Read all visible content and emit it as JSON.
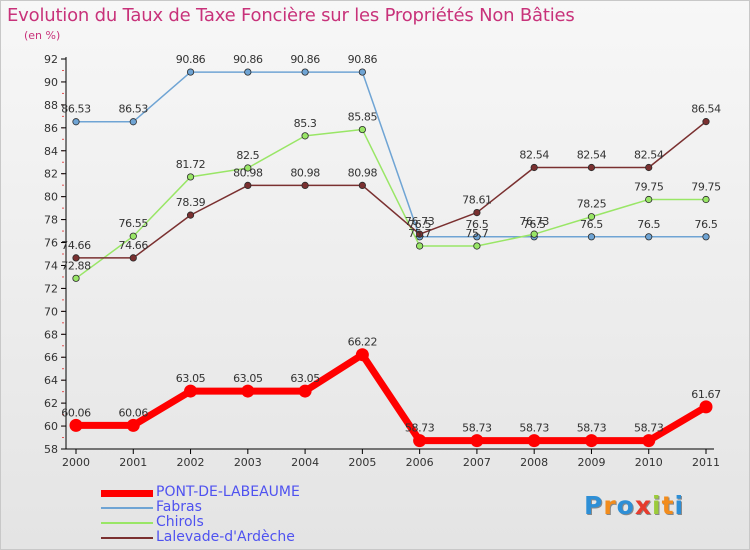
{
  "chart_data": {
    "type": "line",
    "title": "Evolution du Taux de Taxe Foncière sur les Propriétés Non Bâties",
    "ylabel": "(en %)",
    "xlabel": "",
    "categories": [
      "2000",
      "2001",
      "2002",
      "2003",
      "2004",
      "2005",
      "2006",
      "2007",
      "2008",
      "2009",
      "2010",
      "2011"
    ],
    "ylim": [
      58,
      92
    ],
    "yticks": [
      58,
      60,
      62,
      64,
      66,
      68,
      70,
      72,
      74,
      76,
      78,
      80,
      82,
      84,
      86,
      88,
      90,
      92
    ],
    "grid": false,
    "legend_position": "bottom-left",
    "series": [
      {
        "name": "PONT-DE-LABEAUME",
        "color": "#ff0000",
        "values": [
          60.06,
          60.06,
          63.05,
          63.05,
          63.05,
          66.22,
          58.73,
          58.73,
          58.73,
          58.73,
          58.73,
          61.67
        ],
        "labels": [
          "60.06",
          "60.06",
          "63.05",
          "63.05",
          "63.05",
          "66.22",
          "58.73",
          "58.73",
          "58.73",
          "58.73",
          "58.73",
          "61.67"
        ]
      },
      {
        "name": "Fabras",
        "color": "#6fa4d4",
        "values": [
          86.53,
          86.53,
          90.86,
          90.86,
          90.86,
          90.86,
          76.5,
          76.5,
          76.5,
          76.5,
          76.5,
          76.5
        ],
        "labels": [
          "86.53",
          "86.53",
          "90.86",
          "90.86",
          "90.86",
          "90.86",
          "76.5",
          "76.5",
          "76.5",
          "76.5",
          "76.5",
          "76.5"
        ]
      },
      {
        "name": "Chirols",
        "color": "#99e666",
        "values": [
          72.88,
          76.55,
          81.72,
          82.5,
          85.3,
          85.85,
          75.7,
          75.7,
          76.73,
          78.25,
          79.75,
          79.75
        ],
        "labels": [
          "72.88",
          "76.55",
          "81.72",
          "82.5",
          "85.3",
          "85.85",
          "75.7",
          "75.7",
          "76.73",
          "78.25",
          "79.75",
          "79.75"
        ]
      },
      {
        "name": "Lalevade-d'Ardèche",
        "color": "#7a3030",
        "values": [
          74.66,
          74.66,
          78.39,
          80.98,
          80.98,
          80.98,
          76.73,
          78.61,
          82.54,
          82.54,
          82.54,
          86.54
        ],
        "labels": [
          "74.66",
          "74.66",
          "78.39",
          "80.98",
          "80.98",
          "80.98",
          "76.73",
          "78.61",
          "82.54",
          "82.54",
          "82.54",
          "86.54"
        ]
      }
    ]
  },
  "legend": {
    "items": [
      {
        "label": "PONT-DE-LABEAUME",
        "color": "#ff0000"
      },
      {
        "label": "Fabras",
        "color": "#6fa4d4"
      },
      {
        "label": "Chirols",
        "color": "#99e666"
      },
      {
        "label": "Lalevade-d'Ardèche",
        "color": "#7a3030"
      }
    ],
    "label_color": "#4f52f0"
  },
  "logo": {
    "text": "Proxiti",
    "letters": [
      "P",
      "r",
      "o",
      "x",
      "i",
      "t",
      "i"
    ],
    "colors": [
      "#2e8fd6",
      "#f28c1c",
      "#2e8fd6",
      "#e63c2e",
      "#9ccb3b",
      "#f28c1c",
      "#2e8fd6"
    ]
  }
}
